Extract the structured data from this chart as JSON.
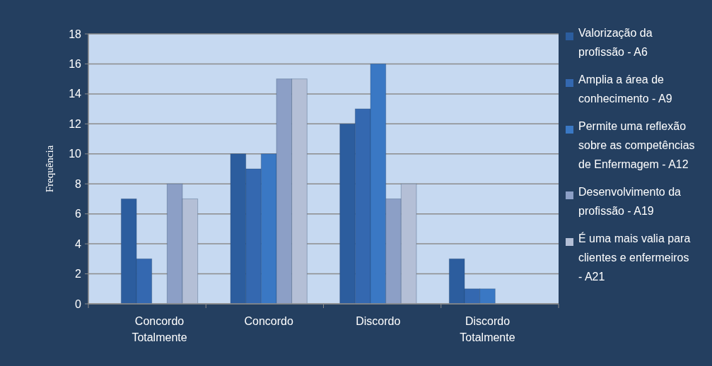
{
  "chart_data": {
    "type": "bar",
    "ylabel": "Frequência",
    "categories": [
      "Concordo Totalmente",
      "Concordo",
      "Discordo",
      "Discordo Totalmente"
    ],
    "series": [
      {
        "name": "Valorização da profissão - A6",
        "color": "#2c5d9e",
        "values": [
          7,
          10,
          12,
          3
        ]
      },
      {
        "name": "Amplia a área de conhecimento - A9",
        "color": "#3468b0",
        "values": [
          3,
          9,
          13,
          1
        ]
      },
      {
        "name": "Permite uma reflexão sobre as competências de Enfermagem - A12",
        "color": "#3a78c4",
        "values": [
          0,
          10,
          16,
          1
        ]
      },
      {
        "name": "Desenvolvimento da profissão - A19",
        "color": "#8c9fc6",
        "values": [
          8,
          15,
          7,
          0
        ]
      },
      {
        "name": "É uma mais valia para clientes e enfermeiros - A21",
        "color": "#b4bfd6",
        "values": [
          7,
          15,
          8,
          0
        ]
      }
    ],
    "ylim": [
      0,
      18
    ],
    "yticks": [
      0,
      2,
      4,
      6,
      8,
      10,
      12,
      14,
      16,
      18
    ],
    "grid": "y",
    "legend": "right"
  }
}
